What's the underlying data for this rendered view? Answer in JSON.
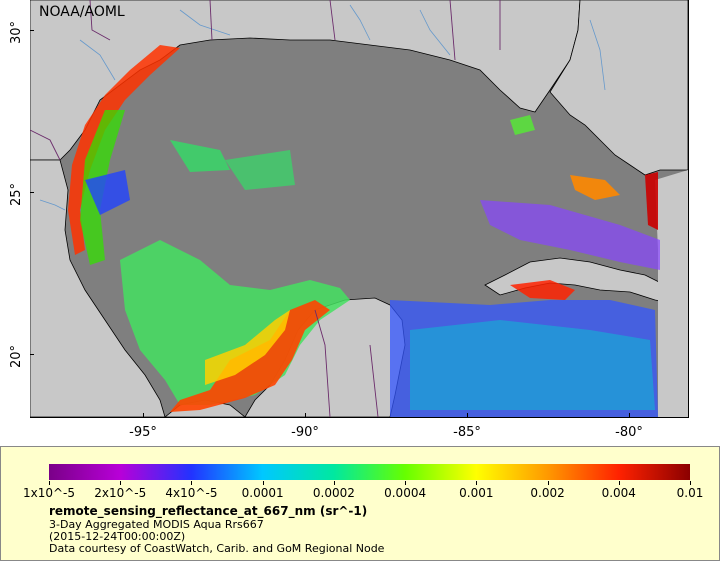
{
  "map": {
    "credit": "NOAA/AOML",
    "lat_ticks": [
      {
        "label": "30°",
        "value": 30
      },
      {
        "label": "25°",
        "value": 25
      },
      {
        "label": "20°",
        "value": 20
      }
    ],
    "lon_ticks": [
      {
        "label": "-95°",
        "value": -95
      },
      {
        "label": "-90°",
        "value": -90
      },
      {
        "label": "-85°",
        "value": -85
      },
      {
        "label": "-80°",
        "value": -80
      }
    ],
    "colors": {
      "ocean_nodata": "#7f7f7f",
      "land": "#c8c8c8",
      "coastline": "#000000",
      "borders": "#6b2c6b",
      "rivers": "#6699cc"
    }
  },
  "legend": {
    "colorbar_labels": [
      "1x10^-5",
      "2x10^-5",
      "4x10^-5",
      "0.0001",
      "0.0002",
      "0.0004",
      "0.001",
      "0.002",
      "0.004",
      "0.01"
    ],
    "colorbar_colors": [
      "#7a0088",
      "#b800d8",
      "#2233ff",
      "#00c8ff",
      "#00e8a0",
      "#66ff00",
      "#ffff00",
      "#ff9900",
      "#ff2200",
      "#8b0000"
    ],
    "title": "remote_sensing_reflectance_at_667_nm (sr^-1)",
    "line1": "3-Day Aggregated MODIS Aqua Rrs667",
    "line2": "(2015-12-24T00:00:00Z)",
    "line3": "Data courtesy of CoastWatch, Carib. and GoM Regional Node"
  }
}
